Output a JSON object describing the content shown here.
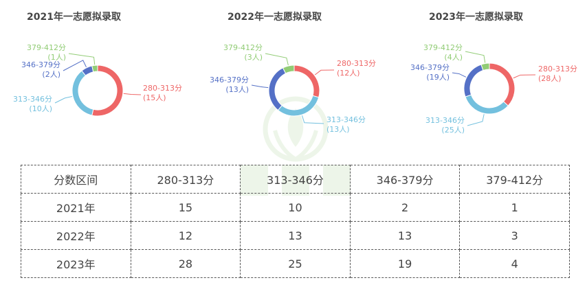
{
  "colors": {
    "280-313": "#ee6666",
    "313-346": "#73c0de",
    "346-379": "#5470c6",
    "379-412": "#91cc75"
  },
  "chart_data": [
    {
      "type": "pie",
      "title": "2021年一志愿拟录取",
      "slices": [
        {
          "range": "280-313分",
          "count_label": "(15人)",
          "value": 15
        },
        {
          "range": "313-346分",
          "count_label": "(10人)",
          "value": 10
        },
        {
          "range": "346-379分",
          "count_label": "(2人)",
          "value": 2
        },
        {
          "range": "379-412分",
          "count_label": "(1人)",
          "value": 1
        }
      ]
    },
    {
      "type": "pie",
      "title": "2022年一志愿拟录取",
      "slices": [
        {
          "range": "280-313分",
          "count_label": "(12人)",
          "value": 12
        },
        {
          "range": "313-346分",
          "count_label": "(13人)",
          "value": 13
        },
        {
          "range": "346-379分",
          "count_label": "(13人)",
          "value": 13
        },
        {
          "range": "379-412分",
          "count_label": "(3人)",
          "value": 3
        }
      ]
    },
    {
      "type": "pie",
      "title": "2023年一志愿拟录取",
      "slices": [
        {
          "range": "280-313分",
          "count_label": "(28人)",
          "value": 28
        },
        {
          "range": "313-346分",
          "count_label": "(25人)",
          "value": 25
        },
        {
          "range": "346-379分",
          "count_label": "(19人)",
          "value": 19
        },
        {
          "range": "379-412分",
          "count_label": "(4人)",
          "value": 4
        }
      ]
    }
  ],
  "table": {
    "header": [
      "分数区间",
      "280-313分",
      "313-346分",
      "346-379分",
      "379-412分"
    ],
    "rows": [
      [
        "2021年",
        "15",
        "10",
        "2",
        "1"
      ],
      [
        "2022年",
        "12",
        "13",
        "13",
        "3"
      ],
      [
        "2023年",
        "28",
        "25",
        "19",
        "4"
      ]
    ]
  }
}
